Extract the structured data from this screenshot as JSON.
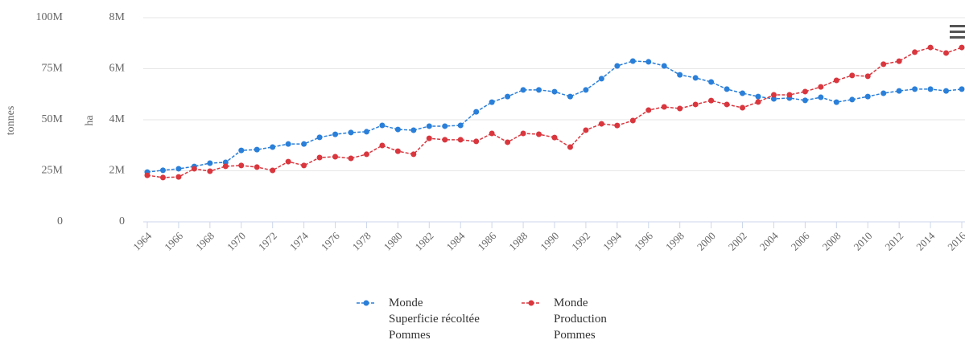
{
  "chart_data": {
    "type": "line",
    "y_label": "tonnes",
    "y2_label": "ha",
    "x": [
      1964,
      1965,
      1966,
      1967,
      1968,
      1969,
      1970,
      1971,
      1972,
      1973,
      1974,
      1975,
      1976,
      1977,
      1978,
      1979,
      1980,
      1981,
      1982,
      1983,
      1984,
      1985,
      1986,
      1987,
      1988,
      1989,
      1990,
      1991,
      1992,
      1993,
      1994,
      1995,
      1996,
      1997,
      1998,
      1999,
      2000,
      2001,
      2002,
      2003,
      2004,
      2005,
      2006,
      2007,
      2008,
      2009,
      2010,
      2011,
      2012,
      2013,
      2014,
      2015,
      2016
    ],
    "xlim": [
      1964,
      2016
    ],
    "xticks": [
      1964,
      1966,
      1968,
      1970,
      1972,
      1974,
      1976,
      1978,
      1980,
      1982,
      1984,
      1986,
      1988,
      1990,
      1992,
      1994,
      1996,
      1998,
      2000,
      2002,
      2004,
      2006,
      2008,
      2010,
      2012,
      2014,
      2016
    ],
    "ylim": [
      0,
      100000000
    ],
    "yticks": [
      0,
      {
        "value": 25000000,
        "label": "25M"
      },
      {
        "value": 50000000,
        "label": "50M"
      },
      {
        "value": 75000000,
        "label": "75M"
      },
      {
        "value": 100000000,
        "label": "100M"
      }
    ],
    "y2lim": [
      0,
      8000000
    ],
    "y2ticks": [
      0,
      {
        "value": 2000000,
        "label": "2M"
      },
      {
        "value": 4000000,
        "label": "4M"
      },
      {
        "value": 6000000,
        "label": "6M"
      },
      {
        "value": 8000000,
        "label": "8M"
      }
    ],
    "grid": true,
    "legend": "bottom",
    "series": [
      {
        "name": "Monde\nSuperficie récoltée\nPommes",
        "color": "#2a7fd9",
        "axis": "y2",
        "values": [
          1950000,
          2020000,
          2080000,
          2170000,
          2300000,
          2330000,
          2800000,
          2830000,
          2930000,
          3050000,
          3050000,
          3310000,
          3430000,
          3500000,
          3530000,
          3780000,
          3620000,
          3590000,
          3750000,
          3750000,
          3780000,
          4310000,
          4690000,
          4910000,
          5170000,
          5170000,
          5100000,
          4910000,
          5170000,
          5610000,
          6110000,
          6300000,
          6270000,
          6110000,
          5760000,
          5640000,
          5480000,
          5200000,
          5040000,
          4910000,
          4820000,
          4850000,
          4760000,
          4880000,
          4690000,
          4790000,
          4910000,
          5040000,
          5130000,
          5200000,
          5200000,
          5130000,
          5200000
        ]
      },
      {
        "name": "Monde\nProduction\nPommes",
        "color": "#d9363e",
        "values": [
          22800000,
          21700000,
          22000000,
          26000000,
          24800000,
          27200000,
          27600000,
          26800000,
          25200000,
          29500000,
          27600000,
          31500000,
          31900000,
          31100000,
          33100000,
          37400000,
          34600000,
          33100000,
          40900000,
          40200000,
          40200000,
          39400000,
          43300000,
          39000000,
          43300000,
          42900000,
          41300000,
          36600000,
          44900000,
          48000000,
          47200000,
          49600000,
          54700000,
          56300000,
          55500000,
          57500000,
          59400000,
          57500000,
          55900000,
          58700000,
          62200000,
          62200000,
          63800000,
          66100000,
          69300000,
          71700000,
          71300000,
          77200000,
          78700000,
          83100000,
          85400000,
          82700000,
          85400000
        ]
      }
    ]
  }
}
